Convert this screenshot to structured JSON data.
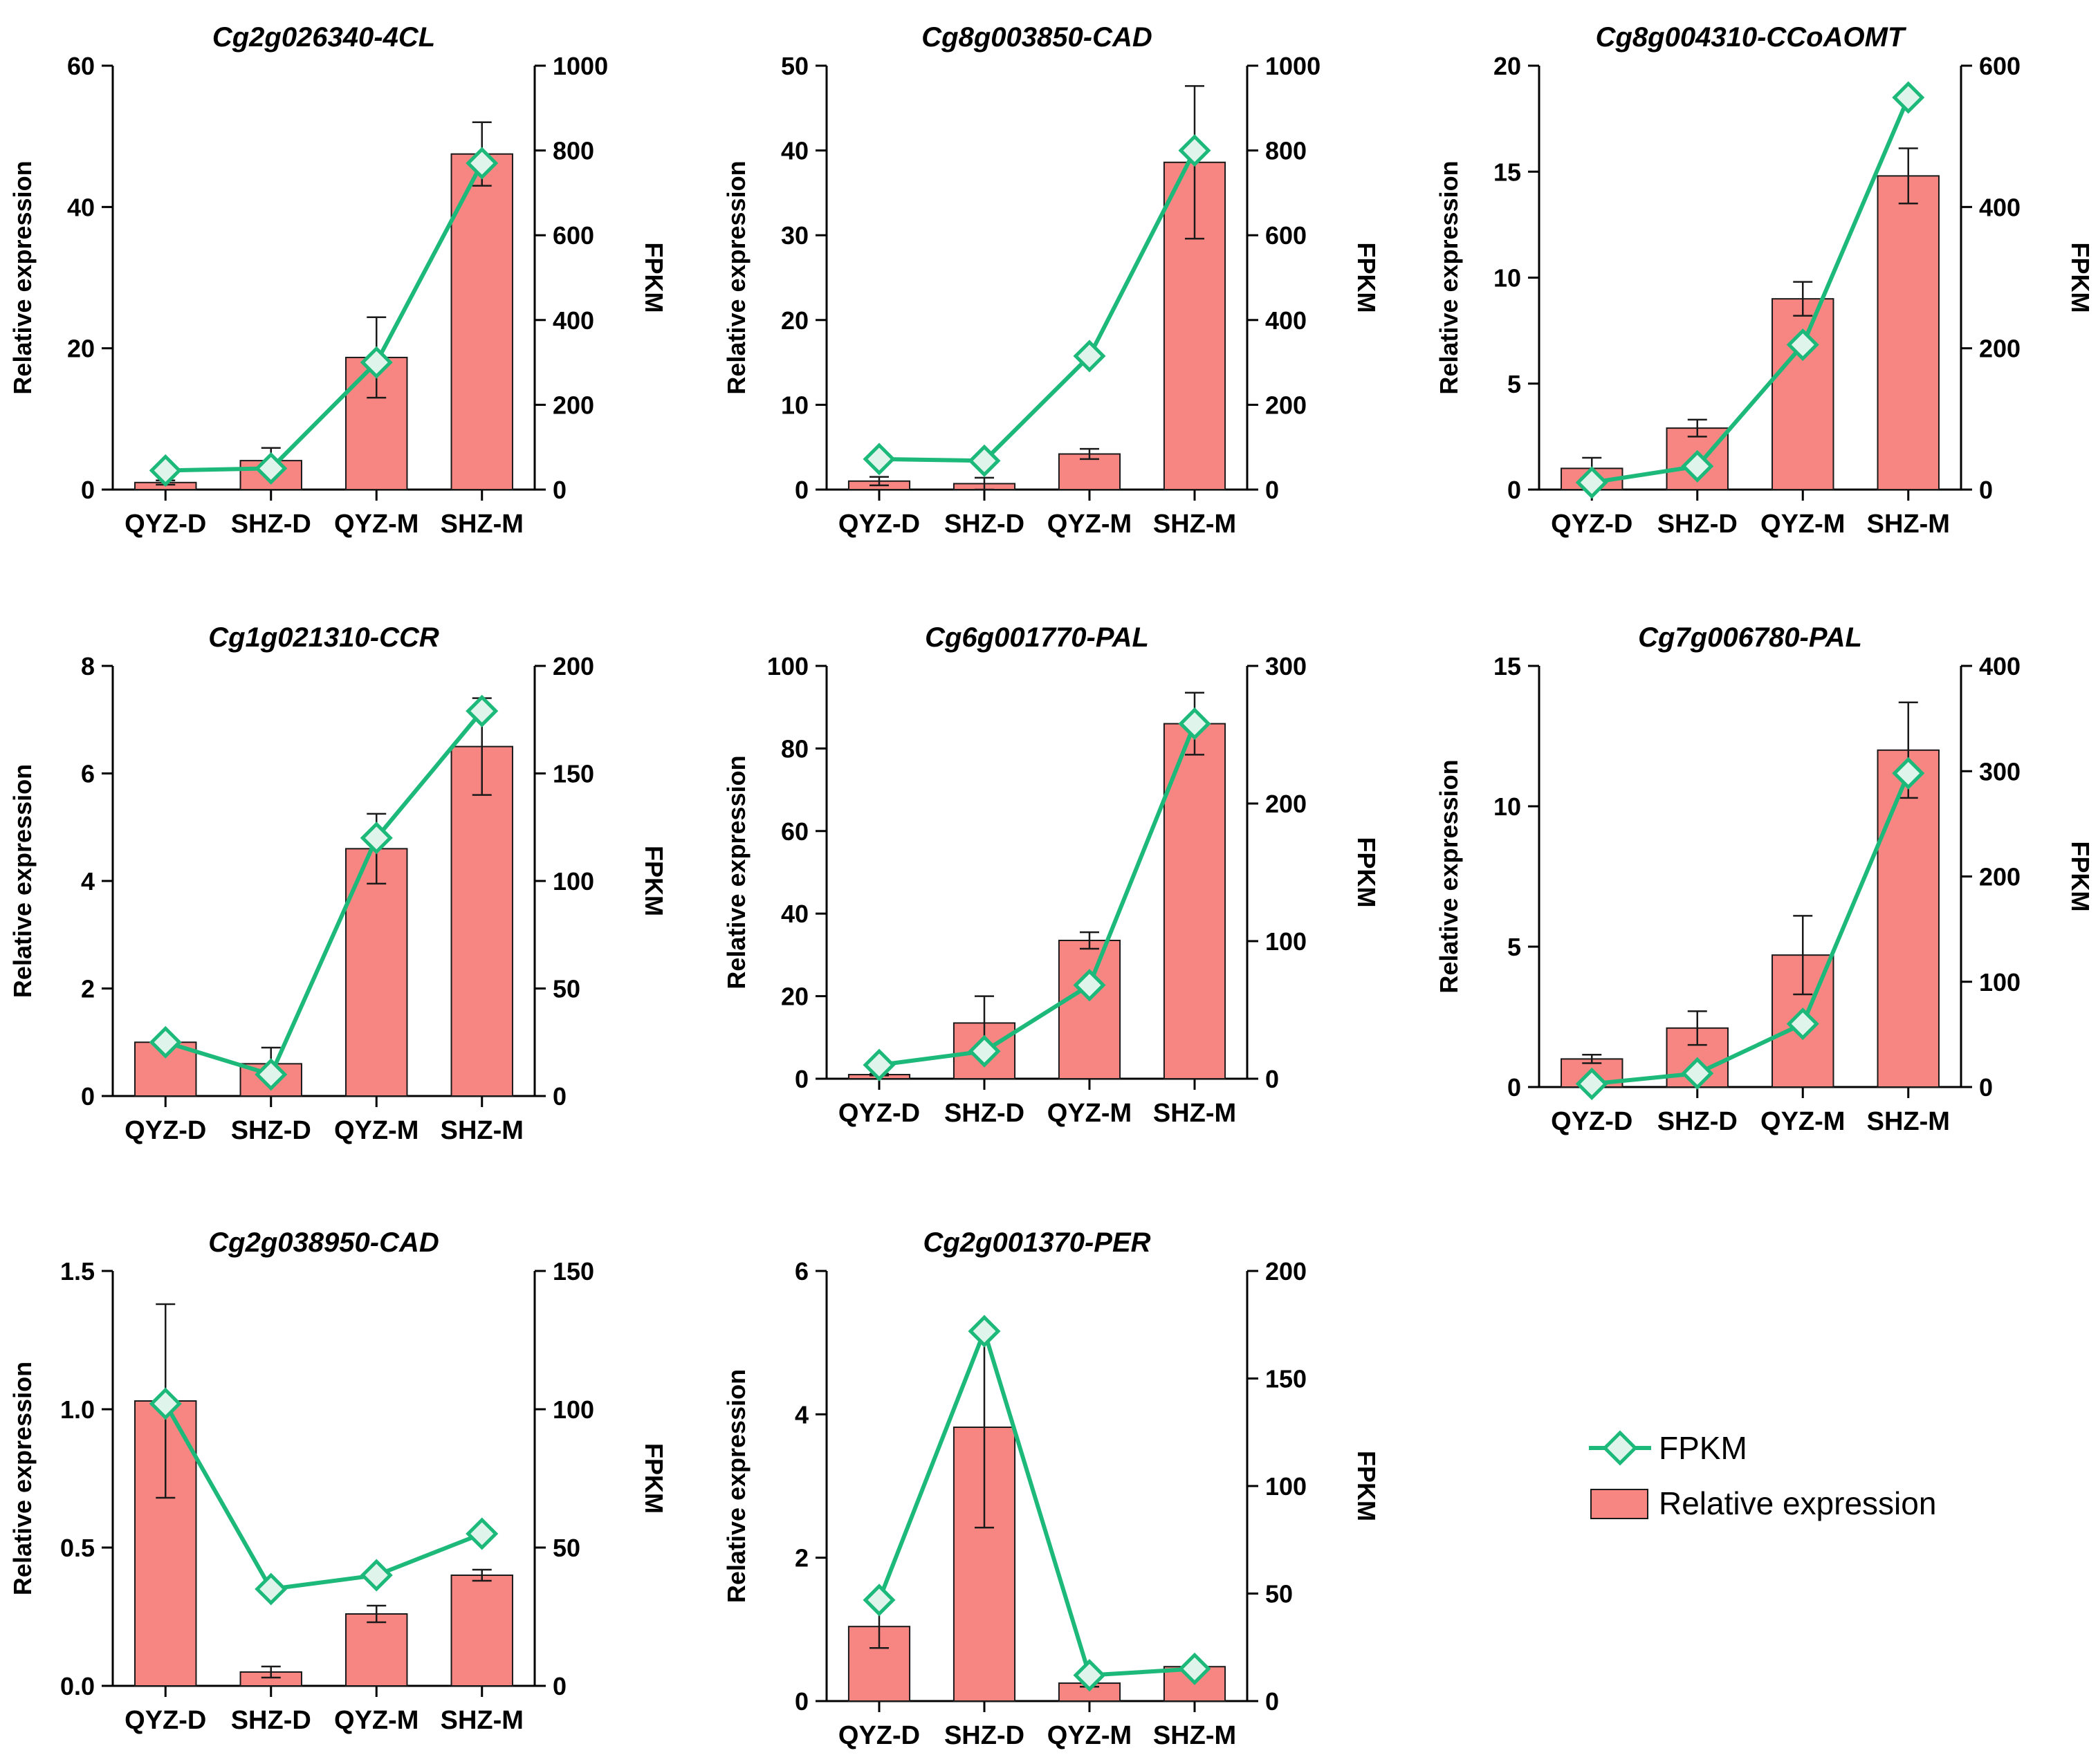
{
  "legend": {
    "line_label": "FPKM",
    "bar_label": "Relative expression"
  },
  "colors": {
    "bar_fill": "#F78683",
    "bar_stroke": "#1a1a1a",
    "line": "#1DB97A",
    "marker_fill": "#DFF5EC",
    "axis": "#000000"
  },
  "chart_data": [
    {
      "type": "bar+line",
      "title": "Cg2g026340-4CL",
      "ylabel": "Relative expression",
      "y2label": "FPKM",
      "categories": [
        "QYZ-D",
        "SHZ-D",
        "QYZ-M",
        "SHZ-M"
      ],
      "ylim": [
        0,
        60
      ],
      "yticks": [
        0,
        20,
        40,
        60
      ],
      "y2lim": [
        0,
        1000
      ],
      "y2ticks": [
        0,
        200,
        400,
        600,
        800,
        1000
      ],
      "bars": [
        1.0,
        4.1,
        18.7,
        47.5
      ],
      "errors": [
        0.3,
        1.8,
        5.7,
        4.5
      ],
      "fpkm": [
        45,
        50,
        300,
        770
      ]
    },
    {
      "type": "bar+line",
      "title": "Cg8g003850-CAD",
      "ylabel": "Relative expression",
      "y2label": "FPKM",
      "categories": [
        "QYZ-D",
        "SHZ-D",
        "QYZ-M",
        "SHZ-M"
      ],
      "ylim": [
        0,
        50
      ],
      "yticks": [
        0,
        10,
        20,
        30,
        40,
        50
      ],
      "y2lim": [
        0,
        1000
      ],
      "y2ticks": [
        0,
        200,
        400,
        600,
        800,
        1000
      ],
      "bars": [
        1.0,
        0.7,
        4.2,
        38.6
      ],
      "errors": [
        0.5,
        0.7,
        0.6,
        9.0
      ],
      "fpkm": [
        72,
        68,
        315,
        800
      ]
    },
    {
      "type": "bar+line",
      "title": "Cg8g004310-CCoAOMT",
      "ylabel": "Relative expression",
      "y2label": "FPKM",
      "categories": [
        "QYZ-D",
        "SHZ-D",
        "QYZ-M",
        "SHZ-M"
      ],
      "ylim": [
        0,
        20
      ],
      "yticks": [
        0,
        5,
        10,
        15,
        20
      ],
      "y2lim": [
        0,
        600
      ],
      "y2ticks": [
        0,
        200,
        400,
        600
      ],
      "bars": [
        1.0,
        2.9,
        9.0,
        14.8
      ],
      "errors": [
        0.5,
        0.4,
        0.8,
        1.3
      ],
      "fpkm": [
        10,
        33,
        205,
        555
      ]
    },
    {
      "type": "bar+line",
      "title": "Cg1g021310-CCR",
      "ylabel": "Relative expression",
      "y2label": "FPKM",
      "categories": [
        "QYZ-D",
        "SHZ-D",
        "QYZ-M",
        "SHZ-M"
      ],
      "ylim": [
        0,
        8
      ],
      "yticks": [
        0,
        2,
        4,
        6,
        8
      ],
      "y2lim": [
        0,
        200
      ],
      "y2ticks": [
        0,
        50,
        100,
        150,
        200
      ],
      "bars": [
        1.0,
        0.6,
        4.6,
        6.5
      ],
      "errors": [
        0.05,
        0.3,
        0.65,
        0.9
      ],
      "fpkm": [
        25,
        10,
        120,
        179
      ]
    },
    {
      "type": "bar+line",
      "title": "Cg6g001770-PAL",
      "ylabel": "Relative expression",
      "y2label": "FPKM",
      "categories": [
        "QYZ-D",
        "SHZ-D",
        "QYZ-M",
        "SHZ-M"
      ],
      "ylim": [
        0,
        100
      ],
      "yticks": [
        0,
        20,
        40,
        60,
        80,
        100
      ],
      "y2lim": [
        0,
        300
      ],
      "y2ticks": [
        0,
        100,
        200,
        300
      ],
      "bars": [
        1.0,
        13.5,
        33.5,
        86.0
      ],
      "errors": [
        0.2,
        6.5,
        2.0,
        7.5
      ],
      "fpkm": [
        10,
        20,
        68,
        258
      ]
    },
    {
      "type": "bar+line",
      "title": "Cg7g006780-PAL",
      "ylabel": "Relative expression",
      "y2label": "FPKM",
      "categories": [
        "QYZ-D",
        "SHZ-D",
        "QYZ-M",
        "SHZ-M"
      ],
      "ylim": [
        0,
        15
      ],
      "yticks": [
        0,
        5,
        10,
        15
      ],
      "y2lim": [
        0,
        400
      ],
      "y2ticks": [
        0,
        100,
        200,
        300,
        400
      ],
      "bars": [
        1.0,
        2.1,
        4.7,
        12.0
      ],
      "errors": [
        0.15,
        0.6,
        1.4,
        1.7
      ],
      "fpkm": [
        3,
        13,
        60,
        298
      ]
    },
    {
      "type": "bar+line",
      "title": "Cg2g038950-CAD",
      "ylabel": "Relative expression",
      "y2label": "FPKM",
      "categories": [
        "QYZ-D",
        "SHZ-D",
        "QYZ-M",
        "SHZ-M"
      ],
      "ylim": [
        0,
        1.5
      ],
      "yticks": [
        "0.0",
        "0.5",
        "1.0",
        "1.5"
      ],
      "y2lim": [
        0,
        150
      ],
      "y2ticks": [
        0,
        50,
        100,
        150
      ],
      "bars": [
        1.03,
        0.05,
        0.26,
        0.4
      ],
      "errors": [
        0.35,
        0.02,
        0.03,
        0.02
      ],
      "fpkm": [
        102,
        35,
        40,
        55
      ]
    },
    {
      "type": "bar+line",
      "title": "Cg2g001370-PER",
      "ylabel": "Relative expression",
      "y2label": "FPKM",
      "categories": [
        "QYZ-D",
        "SHZ-D",
        "QYZ-M",
        "SHZ-M"
      ],
      "ylim": [
        0,
        6
      ],
      "yticks": [
        0,
        2,
        4,
        6
      ],
      "y2lim": [
        0,
        200
      ],
      "y2ticks": [
        0,
        50,
        100,
        150,
        200
      ],
      "bars": [
        1.04,
        3.82,
        0.25,
        0.48
      ],
      "errors": [
        0.3,
        1.4,
        0.05,
        0.03
      ],
      "fpkm": [
        47,
        172,
        12,
        15
      ]
    }
  ]
}
